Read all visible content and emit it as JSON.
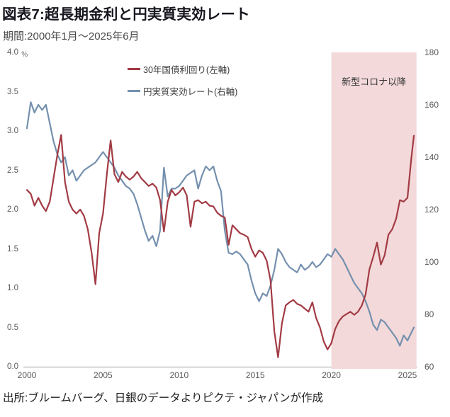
{
  "header": {
    "title": "図表7:超長期金利と円実質実効レート",
    "subtitle": "期間:2000年1月〜2025年6月"
  },
  "source": "出所:ブルームバーグ、日銀のデータよりピクテ・ジャパンが作成",
  "colors": {
    "yield_line": "#a23b44",
    "reer_line": "#7590ae",
    "covid_band": "#f3d9da",
    "axis_line": "#c6c6c6",
    "tick_text": "#595959"
  },
  "chart_data": {
    "type": "line",
    "title": "図表7:超長期金利と円実質実効レート",
    "period": "2000-01 to 2025-06",
    "grid": false,
    "legend_position": "top-left-inside",
    "x_ticks": [
      "2000",
      "2005",
      "2010",
      "2015",
      "2020",
      "2025"
    ],
    "x_range": [
      2000,
      2025.5
    ],
    "left_axis": {
      "unit": "％",
      "ticks": [
        "4.0",
        "3.5",
        "3.0",
        "2.5",
        "2.0",
        "1.5",
        "1.0",
        "0.5",
        "0.0"
      ],
      "range": [
        0,
        4
      ]
    },
    "right_axis": {
      "ticks": [
        "180",
        "160",
        "140",
        "120",
        "100",
        "80",
        "60"
      ],
      "range": [
        60,
        180
      ]
    },
    "covid_band": {
      "label": "新型コロナ以降",
      "start": 2020,
      "end": 2025.5,
      "color": "#f3d9da"
    },
    "x": [
      2000,
      2000.25,
      2000.5,
      2000.75,
      2001,
      2001.25,
      2001.5,
      2001.75,
      2002,
      2002.25,
      2002.5,
      2002.75,
      2003,
      2003.25,
      2003.5,
      2003.75,
      2004,
      2004.25,
      2004.5,
      2004.75,
      2005,
      2005.25,
      2005.5,
      2005.75,
      2006,
      2006.25,
      2006.5,
      2006.75,
      2007,
      2007.25,
      2007.5,
      2007.75,
      2008,
      2008.25,
      2008.5,
      2008.75,
      2009,
      2009.25,
      2009.5,
      2009.75,
      2010,
      2010.25,
      2010.5,
      2010.75,
      2011,
      2011.25,
      2011.5,
      2011.75,
      2012,
      2012.25,
      2012.5,
      2012.75,
      2013,
      2013.25,
      2013.5,
      2013.75,
      2014,
      2014.25,
      2014.5,
      2014.75,
      2015,
      2015.25,
      2015.5,
      2015.75,
      2016,
      2016.25,
      2016.5,
      2016.75,
      2017,
      2017.25,
      2017.5,
      2017.75,
      2018,
      2018.25,
      2018.5,
      2018.75,
      2019,
      2019.25,
      2019.5,
      2019.75,
      2020,
      2020.25,
      2020.5,
      2020.75,
      2021,
      2021.25,
      2021.5,
      2021.75,
      2022,
      2022.25,
      2022.5,
      2022.75,
      2023,
      2023.25,
      2023.5,
      2023.75,
      2024,
      2024.25,
      2024.5,
      2024.75,
      2025,
      2025.25,
      2025.42
    ],
    "series": [
      {
        "name": "30年国債利回り(左軸)",
        "axis": "left",
        "color": "#a23b44",
        "values": [
          2.25,
          2.2,
          2.05,
          2.15,
          2.05,
          1.98,
          2.1,
          2.4,
          2.7,
          2.95,
          2.35,
          2.1,
          2.0,
          1.95,
          2.0,
          1.92,
          1.75,
          1.45,
          1.05,
          1.7,
          1.95,
          2.45,
          2.88,
          2.45,
          2.35,
          2.48,
          2.42,
          2.38,
          2.42,
          2.48,
          2.4,
          2.35,
          2.3,
          2.33,
          2.28,
          2.12,
          1.72,
          2.1,
          2.25,
          2.18,
          2.22,
          2.28,
          2.18,
          1.78,
          2.1,
          2.12,
          2.08,
          2.1,
          2.05,
          2.04,
          1.96,
          1.92,
          1.9,
          1.55,
          1.8,
          1.75,
          1.7,
          1.68,
          1.65,
          1.5,
          1.4,
          1.48,
          1.45,
          1.35,
          1.1,
          0.45,
          0.12,
          0.55,
          0.78,
          0.82,
          0.85,
          0.8,
          0.78,
          0.74,
          0.7,
          0.82,
          0.62,
          0.5,
          0.32,
          0.22,
          0.3,
          0.48,
          0.58,
          0.64,
          0.67,
          0.7,
          0.66,
          0.7,
          0.78,
          0.92,
          1.24,
          1.4,
          1.58,
          1.3,
          1.42,
          1.68,
          1.75,
          1.88,
          2.12,
          2.1,
          2.15,
          2.65,
          2.94
        ]
      },
      {
        "name": "円実質実効レート(右軸)",
        "axis": "right",
        "color": "#7590ae",
        "values": [
          151,
          161,
          157,
          160,
          158,
          160,
          153,
          146,
          141,
          138,
          140,
          133,
          135,
          131,
          133,
          135,
          136,
          137,
          138,
          140,
          142,
          140,
          138,
          136,
          133,
          131,
          129,
          128,
          126,
          122,
          117,
          112,
          108,
          110,
          106,
          112,
          136,
          125,
          128,
          128,
          129,
          131,
          133,
          134,
          135,
          128,
          133,
          136.5,
          135,
          136.5,
          131,
          127,
          112,
          103.5,
          103,
          104,
          103,
          101,
          99,
          93,
          88,
          85,
          88,
          87,
          91,
          97,
          105,
          103,
          100,
          98,
          97,
          96,
          99,
          97,
          98,
          100,
          98,
          99,
          101,
          103,
          102,
          105,
          103,
          101,
          98,
          95,
          92,
          90,
          88,
          85,
          81,
          76,
          74,
          78,
          77,
          75,
          73,
          71,
          68,
          72,
          70,
          73,
          75
        ]
      }
    ]
  }
}
